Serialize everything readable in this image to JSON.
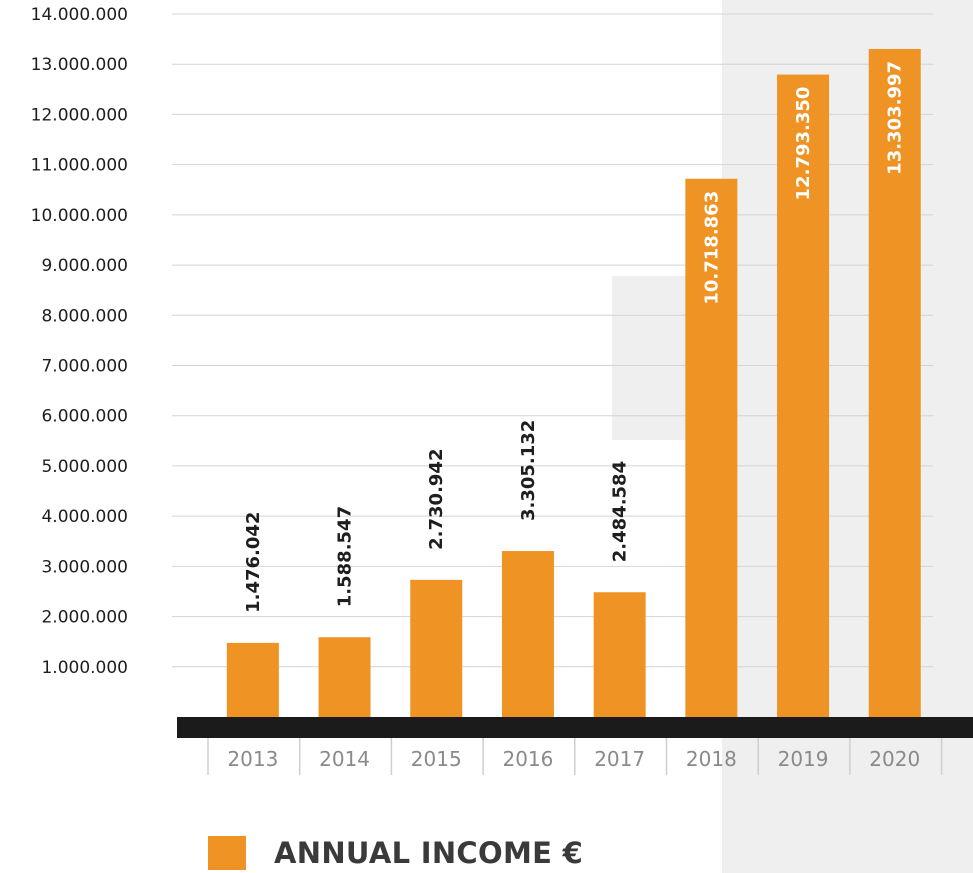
{
  "chart_data": {
    "type": "bar",
    "categories": [
      "2013",
      "2014",
      "2015",
      "2016",
      "2017",
      "2018",
      "2019",
      "2020"
    ],
    "values": [
      1476042,
      1588547,
      2730942,
      3305132,
      2484584,
      10718863,
      12793350,
      13303997
    ],
    "value_labels": [
      "1.476.042",
      "1.588.547",
      "2.730.942",
      "3.305.132",
      "2.484.584",
      "10.718.863",
      "12.793.350",
      "13.303.997"
    ],
    "y_ticks": [
      1000000,
      2000000,
      3000000,
      4000000,
      5000000,
      6000000,
      7000000,
      8000000,
      9000000,
      10000000,
      11000000,
      12000000,
      13000000,
      14000000
    ],
    "y_tick_labels": [
      "1.000.000",
      "2.000.000",
      "3.000.000",
      "4.000.000",
      "5.000.000",
      "6.000.000",
      "7.000.000",
      "8.000.000",
      "9.000.000",
      "10.000.000",
      "11.000.000",
      "12.000.000",
      "13.000.000",
      "14.000.000"
    ],
    "ylim": [
      0,
      14000000
    ],
    "grid": true,
    "legend": [
      {
        "name": "ANNUAL INCOME €",
        "color": "#ee9324"
      }
    ],
    "legend_position": "bottom",
    "title": "",
    "xlabel": "",
    "ylabel": ""
  },
  "colors": {
    "bar": "#ee9324",
    "axis_band": "#1b1b1b",
    "grid": "#d4d4d4",
    "background_shape": "#efefef",
    "tick_text": "#1e1e1e",
    "category_text": "#8a8a8a",
    "label_inside": "#ffffff",
    "label_outside": "#1e1e1e"
  }
}
